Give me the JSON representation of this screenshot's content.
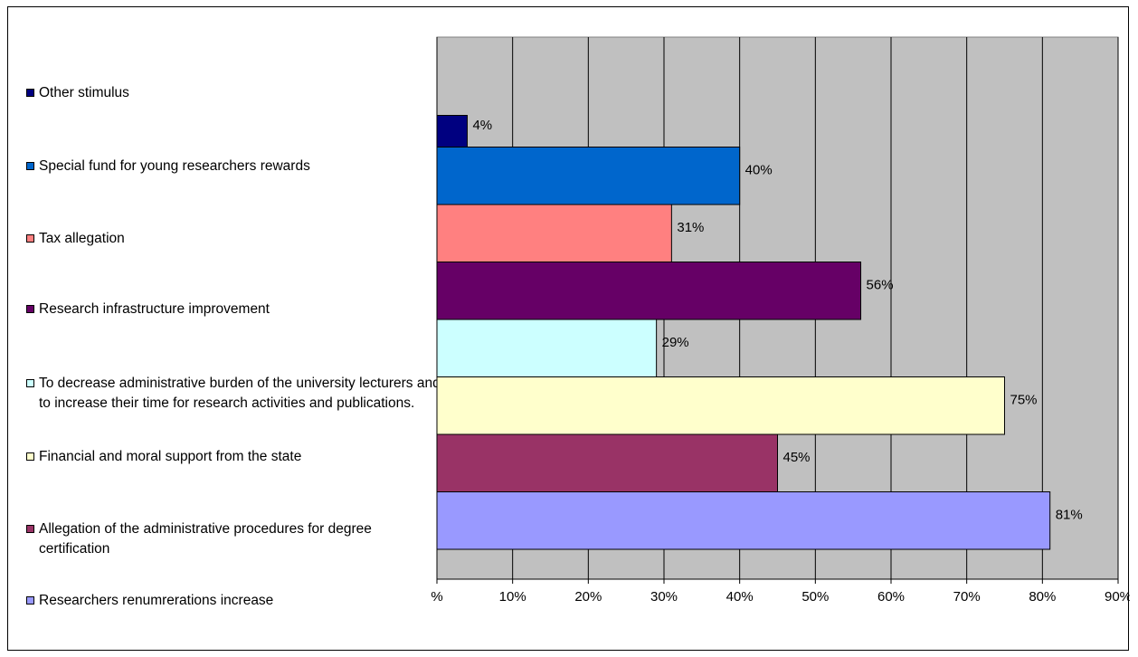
{
  "chart_data": {
    "type": "bar",
    "orientation": "horizontal",
    "categories": [
      "Researchers renumrerations increase",
      "Allegation of the administrative procedures for degree certification",
      "Financial and moral support from the state",
      "To decrease administrative burden of the university lecturers and to increase their time for research activities and publications.",
      "Research infrastructure improvement",
      "Tax allegation",
      "Special fund for young researchers rewards",
      "Other stimulus"
    ],
    "values": [
      81,
      45,
      75,
      29,
      56,
      31,
      40,
      4
    ],
    "data_labels": [
      "81%",
      "45%",
      "75%",
      "29%",
      "56%",
      "31%",
      "40%",
      "4%"
    ],
    "colors": [
      "#9999ff",
      "#993366",
      "#ffffcc",
      "#ccffff",
      "#660066",
      "#ff8080",
      "#0066cc",
      "#000080"
    ],
    "xlim": [
      0,
      90
    ],
    "x_ticks": [
      "%",
      "10%",
      "20%",
      "30%",
      "40%",
      "50%",
      "60%",
      "70%",
      "80%",
      "90%"
    ],
    "grid": true,
    "plot_background": "#c0c0c0",
    "legend_position": "left",
    "legend": [
      "Other stimulus",
      "Special fund for young researchers rewards",
      "Tax allegation",
      "Research infrastructure improvement",
      "To decrease administrative burden of the university lecturers and to increase their time for research activities and publications.",
      "Financial and moral support from the state",
      "Allegation of the administrative procedures for degree certification",
      "Researchers renumrerations increase"
    ],
    "title": "",
    "xlabel": "",
    "ylabel": ""
  }
}
